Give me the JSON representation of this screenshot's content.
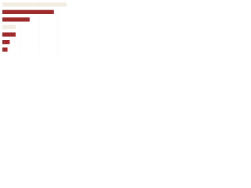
{
  "chart_data": {
    "type": "bar",
    "orientation": "horizontal",
    "categories": [
      null,
      null,
      null,
      null,
      null,
      null,
      null
    ],
    "values": [
      87,
      70,
      37,
      18,
      18,
      10,
      7
    ],
    "colors": [
      "#f2ede2",
      "#9e2a2b",
      "#9e2a2b",
      "#f2ede2",
      "#9e2a2b",
      "#9e2a2b",
      "#9e2a2b"
    ],
    "xlim": [
      0,
      100
    ],
    "grid": true
  }
}
